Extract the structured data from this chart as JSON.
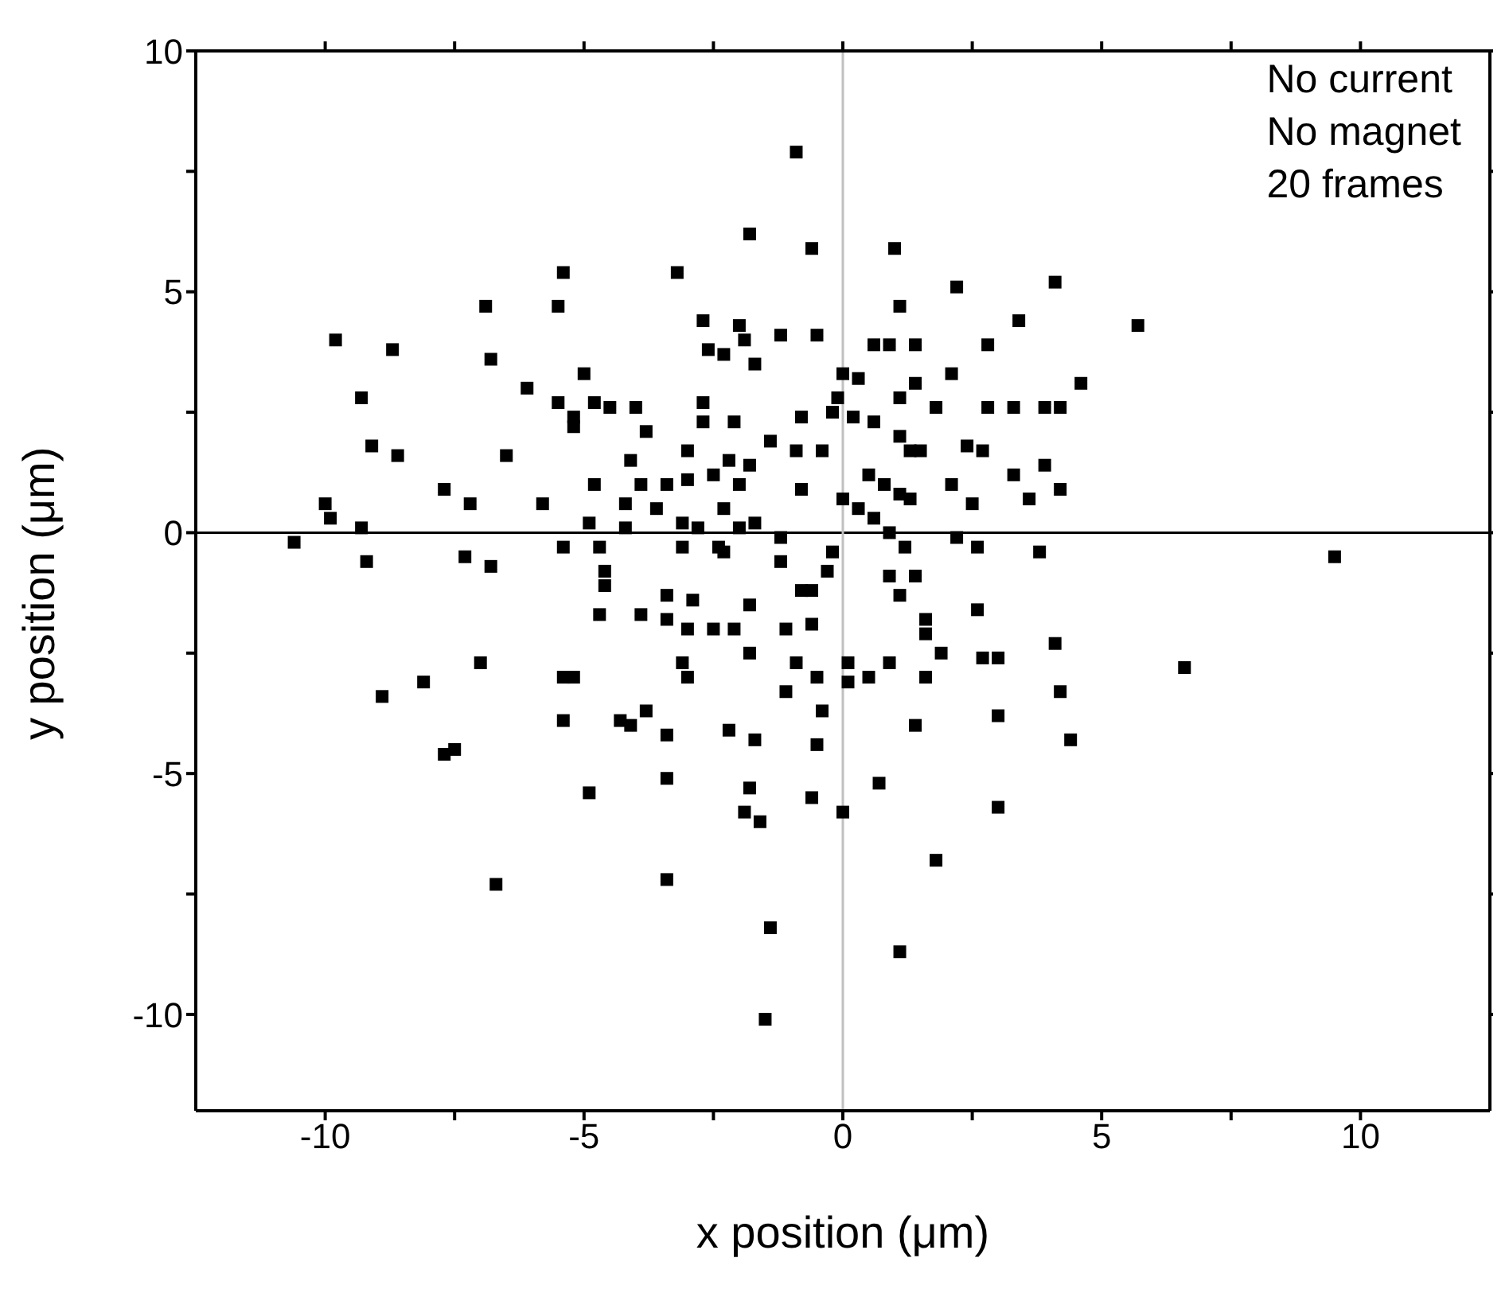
{
  "chart_data": {
    "type": "scatter",
    "xlabel": "x position (μm)",
    "ylabel": "y position (μm)",
    "annotations": [
      "No current",
      "No magnet",
      "20 frames"
    ],
    "xlim": [
      -12.5,
      12.5
    ],
    "ylim": [
      -12,
      10
    ],
    "xticks": [
      -10,
      {
        "value": -7.5,
        "label": null
      },
      -5,
      {
        "value": -2.5,
        "label": null
      },
      0,
      {
        "value": 2.5,
        "label": null
      },
      5,
      {
        "value": 7.5,
        "label": null
      },
      10
    ],
    "yticks": [
      -10,
      {
        "value": -7.5,
        "label": null
      },
      -5,
      {
        "value": -2.5,
        "label": null
      },
      0,
      {
        "value": 2.5,
        "label": null
      },
      5,
      {
        "value": 7.5,
        "label": null
      },
      10
    ],
    "legend": false,
    "marker": "square",
    "ref_lines": [
      {
        "axis": "y",
        "value": 0,
        "color": "#000000"
      },
      {
        "axis": "x",
        "value": 0,
        "color": "#c0c0c0"
      }
    ],
    "series": [
      {
        "color": "#000000",
        "x": [
          -0.9,
          -1.8,
          -0.6,
          1.0,
          -3.2,
          -5.4,
          -5.5,
          -6.9,
          2.2,
          4.1,
          3.4,
          5.7,
          1.1,
          -2.7,
          -2.0,
          -1.9,
          -1.2,
          -0.5,
          -2.6,
          -2.3,
          -1.7,
          0.0,
          0.3,
          0.6,
          0.9,
          1.4,
          2.8,
          1.4,
          2.1,
          1.1,
          1.8,
          -0.1,
          -0.2,
          0.2,
          0.6,
          -0.8,
          -2.7,
          -2.7,
          -2.1,
          -4.0,
          -3.8,
          -3.0,
          -1.4,
          -0.9,
          -0.4,
          1.1,
          1.3,
          1.5,
          2.4,
          2.7,
          2.8,
          3.3,
          3.9,
          4.2,
          4.6,
          3.3,
          3.9,
          3.6,
          4.2,
          2.1,
          2.5,
          0.5,
          0.8,
          1.1,
          1.3,
          0.0,
          0.3,
          0.6,
          0.9,
          1.2,
          2.2,
          2.6,
          -0.8,
          -1.2,
          -4.1,
          -3.9,
          -3.4,
          -3.0,
          -2.5,
          -2.2,
          -1.8,
          -2.0,
          -2.3,
          -2.0,
          -1.7,
          -3.6,
          -4.2,
          -4.2,
          -3.1,
          -2.8,
          -3.1,
          -2.4,
          -0.2,
          -9.8,
          -8.7,
          -6.8,
          -9.3,
          -5.0,
          -6.1,
          -5.5,
          -5.2,
          -5.2,
          -4.8,
          -4.5,
          -9.1,
          -8.6,
          -6.5,
          -4.8,
          -7.7,
          -7.2,
          -5.8,
          -10.0,
          -9.9,
          -9.3,
          -4.9,
          -10.6,
          -9.2,
          -7.3,
          -6.8,
          -5.4,
          -4.7,
          -4.6,
          -4.6,
          -4.7,
          -7.0,
          -8.1,
          -8.9,
          -5.4,
          -5.2,
          -5.4,
          -4.3,
          -7.7,
          -7.5,
          -4.9,
          -6.7,
          3.8,
          9.5,
          4.1,
          4.2,
          4.4,
          6.6,
          -2.3,
          -1.2,
          -0.3,
          -0.8,
          -0.6,
          -3.4,
          -2.9,
          -1.8,
          -3.9,
          -3.4,
          -3.0,
          -2.5,
          -2.1,
          -1.1,
          -0.6,
          -1.8,
          -3.1,
          -3.0,
          -0.9,
          -0.5,
          -1.1,
          -0.4,
          0.1,
          0.1,
          0.5,
          0.9,
          1.6,
          1.9,
          1.6,
          1.6,
          1.1,
          1.4,
          0.9,
          2.6,
          2.7,
          3.0,
          3.0,
          -4.1,
          -3.8,
          -3.4,
          -2.2,
          -1.7,
          -0.5,
          1.4,
          -3.4,
          -1.8,
          -1.9,
          -1.6,
          -0.6,
          0.0,
          0.7,
          3.0,
          1.8,
          -3.4,
          -1.4,
          1.1,
          -1.5
        ],
        "values": [
          7.9,
          6.2,
          5.9,
          5.9,
          5.4,
          5.4,
          4.7,
          4.7,
          5.1,
          5.2,
          4.4,
          4.3,
          4.7,
          4.4,
          4.3,
          4.0,
          4.1,
          4.1,
          3.8,
          3.7,
          3.5,
          3.3,
          3.2,
          3.9,
          3.9,
          3.9,
          3.9,
          3.1,
          3.3,
          2.8,
          2.6,
          2.8,
          2.5,
          2.4,
          2.3,
          2.4,
          2.7,
          2.3,
          2.3,
          2.6,
          2.1,
          1.7,
          1.9,
          1.7,
          1.7,
          2.0,
          1.7,
          1.7,
          1.8,
          1.7,
          2.6,
          2.6,
          2.6,
          2.6,
          3.1,
          1.2,
          1.4,
          0.7,
          0.9,
          1.0,
          0.6,
          1.2,
          1.0,
          0.8,
          0.7,
          0.7,
          0.5,
          0.3,
          0.0,
          -0.3,
          -0.1,
          -0.3,
          0.9,
          -0.1,
          1.5,
          1.0,
          1.0,
          1.1,
          1.2,
          1.5,
          1.4,
          1.0,
          0.5,
          0.1,
          0.2,
          0.5,
          0.6,
          0.1,
          0.2,
          0.1,
          -0.3,
          -0.3,
          -0.4,
          4.0,
          3.8,
          3.6,
          2.8,
          3.3,
          3.0,
          2.7,
          2.4,
          2.2,
          2.7,
          2.6,
          1.8,
          1.6,
          1.6,
          1.0,
          0.9,
          0.6,
          0.6,
          0.6,
          0.3,
          0.1,
          0.2,
          -0.2,
          -0.6,
          -0.5,
          -0.7,
          -0.3,
          -0.3,
          -0.8,
          -1.1,
          -1.7,
          -2.7,
          -3.1,
          -3.4,
          -3.0,
          -3.0,
          -3.9,
          -3.9,
          -4.6,
          -4.5,
          -5.4,
          -7.3,
          -0.4,
          -0.5,
          -2.3,
          -3.3,
          -4.3,
          -2.8,
          -0.4,
          -0.6,
          -0.8,
          -1.2,
          -1.2,
          -1.3,
          -1.4,
          -1.5,
          -1.7,
          -1.8,
          -2.0,
          -2.0,
          -2.0,
          -2.0,
          -1.9,
          -2.5,
          -2.7,
          -3.0,
          -2.7,
          -3.0,
          -3.3,
          -3.7,
          -2.7,
          -3.1,
          -3.0,
          -2.7,
          -3.0,
          -2.5,
          -1.8,
          -2.1,
          -1.3,
          -0.9,
          -0.9,
          -1.6,
          -2.6,
          -2.6,
          -3.8,
          -4.0,
          -3.7,
          -4.2,
          -4.1,
          -4.3,
          -4.4,
          -4.0,
          -5.1,
          -5.3,
          -5.8,
          -6.0,
          -5.5,
          -5.8,
          -5.2,
          -5.7,
          -6.8,
          -7.2,
          -8.2,
          -8.7,
          -10.1
        ]
      }
    ]
  }
}
